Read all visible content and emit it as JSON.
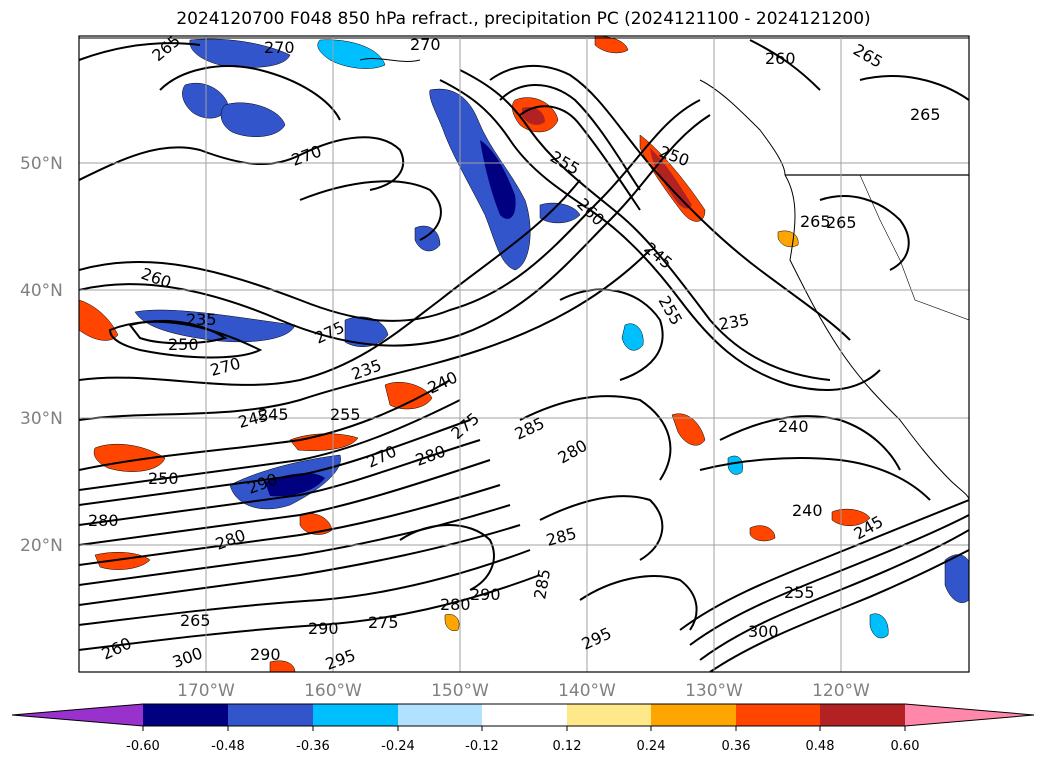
{
  "title": "2024120700 F048 850 hPa refract., precipitation PC (2024121100 - 2024121200)",
  "map": {
    "lat_labels": [
      "50°N",
      "40°N",
      "30°N",
      "20°N"
    ],
    "lon_labels": [
      "170°W",
      "160°W",
      "150°W",
      "140°W",
      "130°W",
      "120°W"
    ],
    "contour_labels": [
      "265",
      "270",
      "270",
      "260",
      "265",
      "265",
      "270",
      "250",
      "255",
      "245",
      "260",
      "255",
      "260",
      "250",
      "235",
      "275",
      "265",
      "235",
      "240",
      "245",
      "255",
      "270",
      "280",
      "275",
      "285",
      "280",
      "235",
      "240",
      "250",
      "290",
      "280",
      "285",
      "270",
      "280",
      "265",
      "265",
      "290",
      "275",
      "290",
      "285",
      "295",
      "240",
      "255",
      "300",
      "245",
      "300",
      "290",
      "295",
      "260",
      "280",
      "245"
    ]
  },
  "colorbar": {
    "tick_labels": [
      "-0.60",
      "-0.48",
      "-0.36",
      "-0.24",
      "-0.12",
      "0.12",
      "0.24",
      "0.36",
      "0.48",
      "0.60"
    ],
    "colors": [
      "#9932cc",
      "#000080",
      "#3355cc",
      "#00bfff",
      "#b0e2ff",
      "#ffffff",
      "#ffe88a",
      "#ffa500",
      "#ff4500",
      "#b22222",
      "#ff88aa"
    ]
  }
}
